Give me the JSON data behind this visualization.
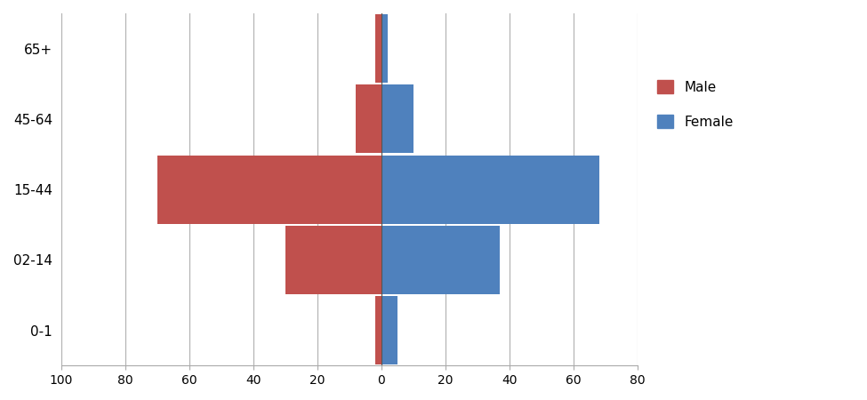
{
  "categories": [
    "0-1",
    "02-14",
    "15-44",
    "45-64",
    "65+"
  ],
  "male_values": [
    2,
    30,
    70,
    8,
    2
  ],
  "female_values": [
    5,
    37,
    68,
    10,
    2
  ],
  "male_color": "#C0504D",
  "female_color": "#4F81BD",
  "xlim": [
    -100,
    80
  ],
  "xticks": [
    -100,
    -80,
    -60,
    -40,
    -20,
    0,
    20,
    40,
    60,
    80
  ],
  "xticklabels": [
    "100",
    "80",
    "60",
    "40",
    "20",
    "0",
    "20",
    "40",
    "60",
    "80"
  ],
  "background_color": "#ffffff",
  "grid_color": "#b0b0b0",
  "legend_male": "Male",
  "legend_female": "Female",
  "bar_height": 0.97,
  "figsize": [
    9.75,
    4.5
  ],
  "dpi": 100
}
